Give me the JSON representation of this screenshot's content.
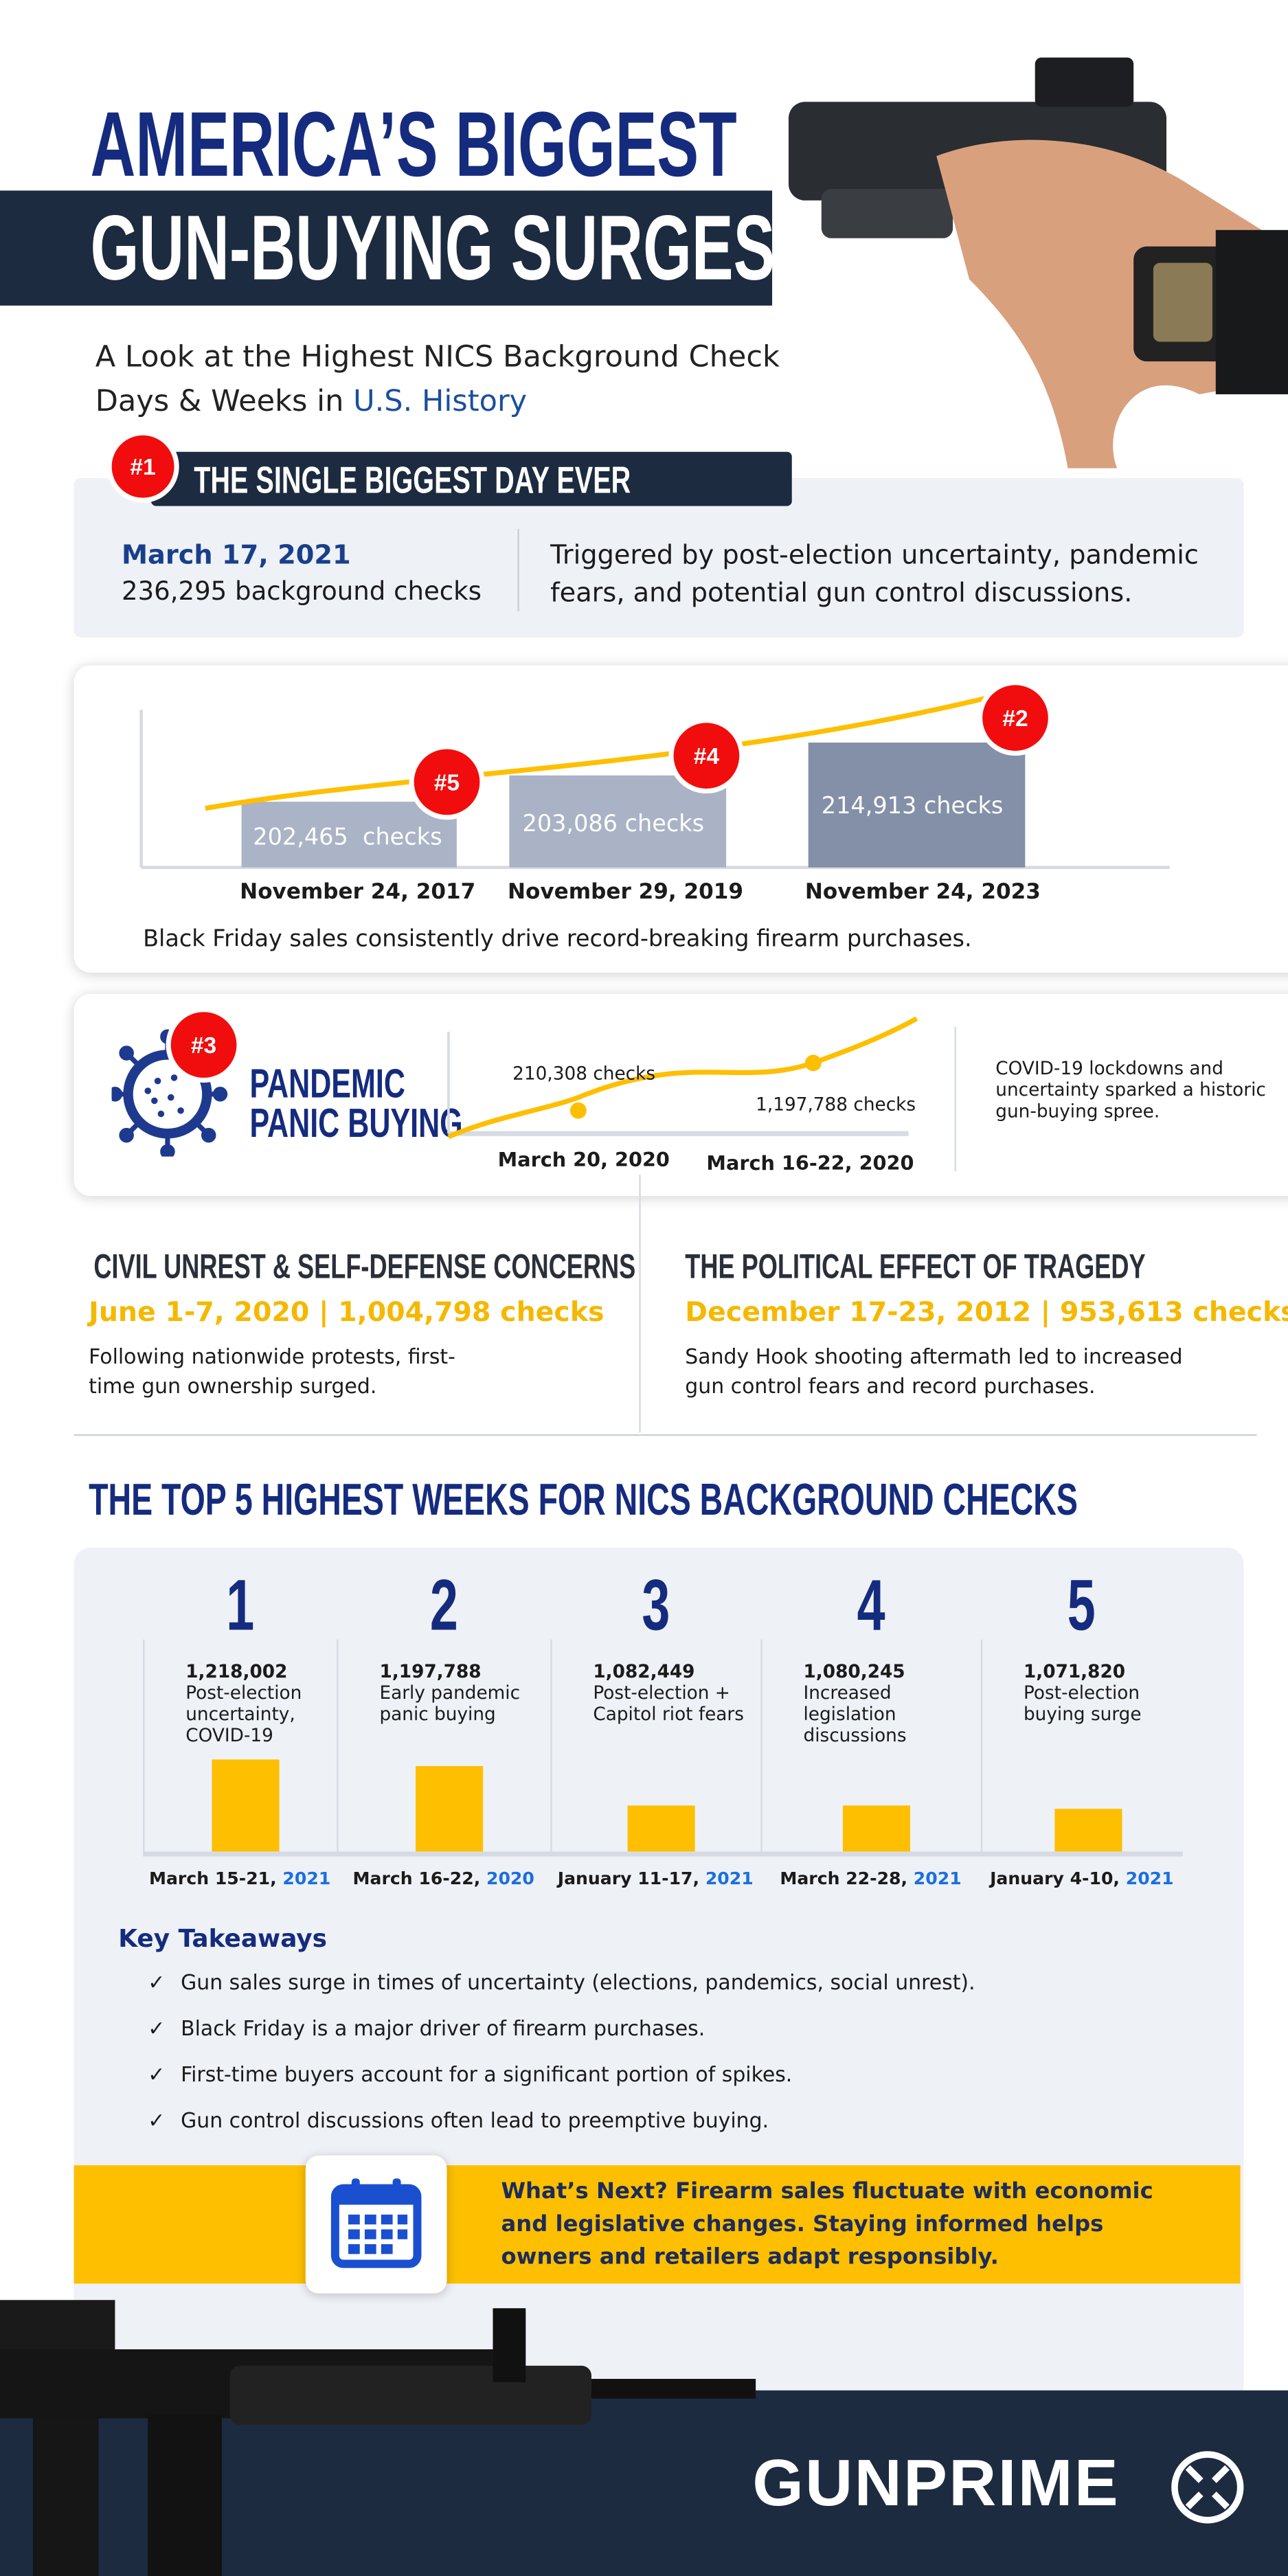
{
  "header": {
    "title_line1": "AMERICA’S BIGGEST",
    "title_line2": "GUN-BUYING SURGES",
    "subtitle_line1": "A Look at the Highest NICS Background Check",
    "subtitle_line2_prefix": "Days & Weeks in ",
    "subtitle_line2_highlight": "U.S. History"
  },
  "biggest_day": {
    "badge": "#1",
    "heading": "THE SINGLE BIGGEST DAY EVER",
    "date": "March 17, 2021",
    "checks": "236,295 background checks",
    "description": "Triggered by post-election uncertainty, pandemic fears, and potential gun control discussions."
  },
  "black_friday": {
    "bars": [
      {
        "badge": "#5",
        "label": "202,465  checks",
        "date": "November 24, 2017",
        "value": 202465
      },
      {
        "badge": "#4",
        "label": "203,086 checks",
        "date": "November 29, 2019",
        "value": 203086
      },
      {
        "badge": "#2",
        "label": "214,913 checks",
        "date": "November 24, 2023",
        "value": 214913
      }
    ],
    "caption": "Black Friday sales consistently drive record-breaking firearm purchases."
  },
  "pandemic": {
    "badge": "#3",
    "title_line1": "PANDEMIC",
    "title_line2": "PANIC BUYING",
    "point1_label": "210,308 checks",
    "point1_date": "March 20, 2020",
    "point2_label": "1,197,788 checks",
    "point2_date": "March 16-22, 2020",
    "description": "COVID-19 lockdowns and uncertainty sparked a historic gun-buying spree."
  },
  "civil_unrest": {
    "heading": "CIVIL UNREST & SELF-DEFENSE CONCERNS",
    "highlight": "June 1-7, 2020 | 1,004,798 checks",
    "body": "Following nationwide protests, first-time gun ownership surged."
  },
  "tragedy": {
    "heading": "THE POLITICAL EFFECT OF TRAGEDY",
    "highlight": "December 17-23, 2012 | 953,613 checks",
    "body": "Sandy Hook shooting aftermath led to increased gun control fears and record purchases."
  },
  "top5": {
    "heading": "THE TOP 5 HIGHEST WEEKS FOR NICS BACKGROUND CHECKS",
    "weeks": [
      {
        "rank": "1",
        "value_label": "1,218,002",
        "reason": "Post-election uncertainty, COVID-19",
        "date": "March 15-21, ",
        "year": "2021"
      },
      {
        "rank": "2",
        "value_label": "1,197,788",
        "reason": "Early pandemic panic buying",
        "date": "March 16-22, ",
        "year": "2020"
      },
      {
        "rank": "3",
        "value_label": "1,082,449",
        "reason": "Post-election + Capitol riot fears",
        "date": "January 11-17, ",
        "year": "2021"
      },
      {
        "rank": "4",
        "value_label": "1,080,245",
        "reason": "Increased legislation discussions",
        "date": "March 22-28, ",
        "year": "2021"
      },
      {
        "rank": "5",
        "value_label": "1,071,820",
        "reason": "Post-election buying surge",
        "date": "January 4-10, ",
        "year": "2021"
      }
    ]
  },
  "chart_data": {
    "type": "bar",
    "categories": [
      "March 15-21, 2021",
      "March 16-22, 2020",
      "January 11-17, 2021",
      "March 22-28, 2021",
      "January 4-10, 2021"
    ],
    "values": [
      1218002,
      1197788,
      1082449,
      1080245,
      1071820
    ],
    "title": "THE TOP 5 HIGHEST WEEKS FOR NICS BACKGROUND CHECKS",
    "xlabel": "",
    "ylabel": "",
    "bar_color": "#fdbf00"
  },
  "takeaways": {
    "heading": "Key Takeaways",
    "items": [
      "Gun sales surge in times of uncertainty (elections, pandemics, social unrest).",
      "Black Friday is a major driver of firearm purchases.",
      "First-time buyers account for a significant portion of spikes.",
      "Gun control discussions often lead to preemptive buying."
    ]
  },
  "whats_next": {
    "icon": "calendar-icon",
    "text": "What’s Next? Firearm sales fluctuate with economic and legislative changes. Staying informed helps owners and retailers adapt responsibly."
  },
  "footer": {
    "logo": "GUNPRIME"
  },
  "colors": {
    "navy": "#152b7e",
    "dark_band": "#1c2b3f",
    "yellow": "#fdbf00",
    "red": "#f10d0d",
    "light_bg": "#eef1f6",
    "blue_accent": "#1a6fe0"
  }
}
